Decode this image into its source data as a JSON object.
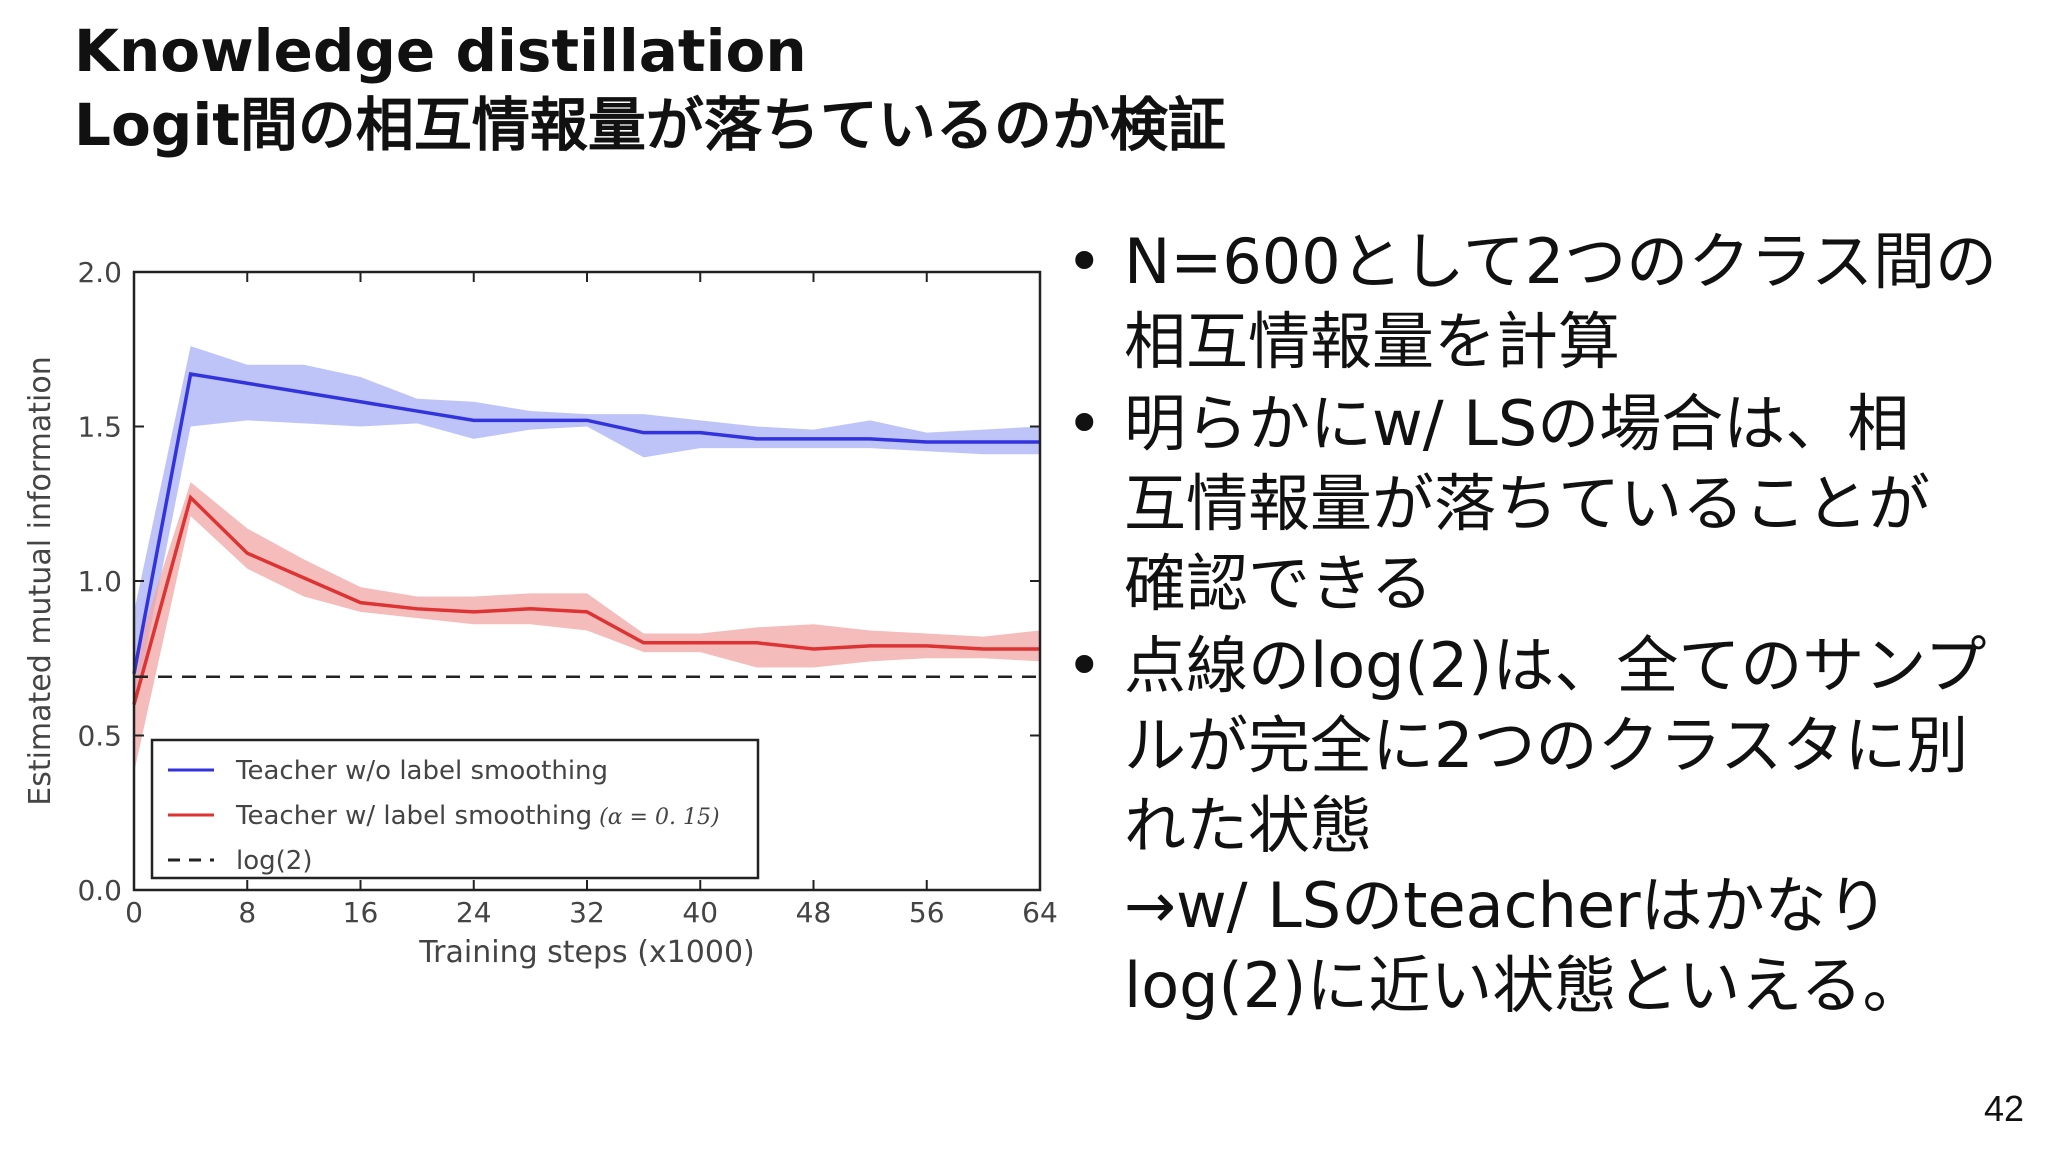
{
  "slide": {
    "title_line1": "Knowledge distillation",
    "title_line2": "Logit間の相互情報量が落ちているのか検証",
    "page_number": "42"
  },
  "bullets": [
    {
      "lines": [
        "N=600として2つのクラス間の",
        "相互情報量を計算"
      ]
    },
    {
      "lines": [
        "明らかにw/ LSの場合は、相",
        "互情報量が落ちていることが",
        "確認できる"
      ]
    },
    {
      "lines": [
        "点線のlog(2)は、全てのサンプ",
        "ルが完全に2つのクラスタに別",
        "れた状態",
        "→w/ LSのteacherはかなり",
        "log(2)に近い状態といえる。"
      ]
    }
  ],
  "colors": {
    "blue_line": "#3333dd",
    "blue_band": "#aab0f5",
    "red_line": "#dd3333",
    "red_band": "#f2a6a6",
    "axis": "#222222",
    "tick_text": "#444444"
  },
  "chart_data": {
    "type": "line",
    "title": "",
    "xlabel": "Training steps (x1000)",
    "ylabel": "Estimated mutual information",
    "xlim": [
      0,
      64
    ],
    "ylim": [
      0,
      2.0
    ],
    "xticks": [
      0,
      8,
      16,
      24,
      32,
      40,
      48,
      56,
      64
    ],
    "yticks": [
      0.0,
      0.5,
      1.0,
      1.5,
      2.0
    ],
    "xtick_labels": [
      "0",
      "8",
      "16",
      "24",
      "32",
      "40",
      "48",
      "56",
      "64"
    ],
    "ytick_labels": [
      "0.0",
      "0.5",
      "1.0",
      "1.5",
      "2.0"
    ],
    "legend_position": "bottom-left",
    "series": [
      {
        "name": "Teacher w/o label smoothing",
        "color": "#3333dd",
        "band_color": "#aab0f5",
        "x": [
          0,
          4,
          8,
          12,
          16,
          20,
          24,
          28,
          32,
          36,
          40,
          44,
          48,
          52,
          56,
          60,
          64
        ],
        "y": [
          0.7,
          1.67,
          1.64,
          1.61,
          1.58,
          1.55,
          1.52,
          1.52,
          1.52,
          1.48,
          1.48,
          1.46,
          1.46,
          1.46,
          1.45,
          1.45,
          1.45
        ],
        "lower": [
          0.58,
          1.5,
          1.52,
          1.51,
          1.5,
          1.51,
          1.46,
          1.49,
          1.5,
          1.4,
          1.43,
          1.43,
          1.43,
          1.43,
          1.42,
          1.41,
          1.41
        ],
        "upper": [
          0.9,
          1.76,
          1.7,
          1.7,
          1.66,
          1.59,
          1.58,
          1.55,
          1.54,
          1.54,
          1.52,
          1.5,
          1.49,
          1.52,
          1.48,
          1.49,
          1.5
        ]
      },
      {
        "name": "Teacher w/ label smoothing",
        "name_suffix": "(α = 0. 15)",
        "color": "#dd3333",
        "band_color": "#f2a6a6",
        "x": [
          0,
          4,
          8,
          12,
          16,
          20,
          24,
          28,
          32,
          36,
          40,
          44,
          48,
          52,
          56,
          60,
          64
        ],
        "y": [
          0.6,
          1.27,
          1.09,
          1.01,
          0.93,
          0.91,
          0.9,
          0.91,
          0.9,
          0.8,
          0.8,
          0.8,
          0.78,
          0.79,
          0.79,
          0.78,
          0.78
        ],
        "lower": [
          0.38,
          1.21,
          1.04,
          0.95,
          0.9,
          0.88,
          0.86,
          0.86,
          0.84,
          0.77,
          0.77,
          0.72,
          0.72,
          0.74,
          0.75,
          0.75,
          0.74
        ],
        "upper": [
          0.75,
          1.32,
          1.17,
          1.07,
          0.98,
          0.95,
          0.95,
          0.96,
          0.96,
          0.83,
          0.83,
          0.85,
          0.86,
          0.84,
          0.83,
          0.82,
          0.84
        ]
      },
      {
        "name": "log(2)",
        "color": "#222222",
        "style": "dashed",
        "constant": 0.69
      }
    ]
  }
}
